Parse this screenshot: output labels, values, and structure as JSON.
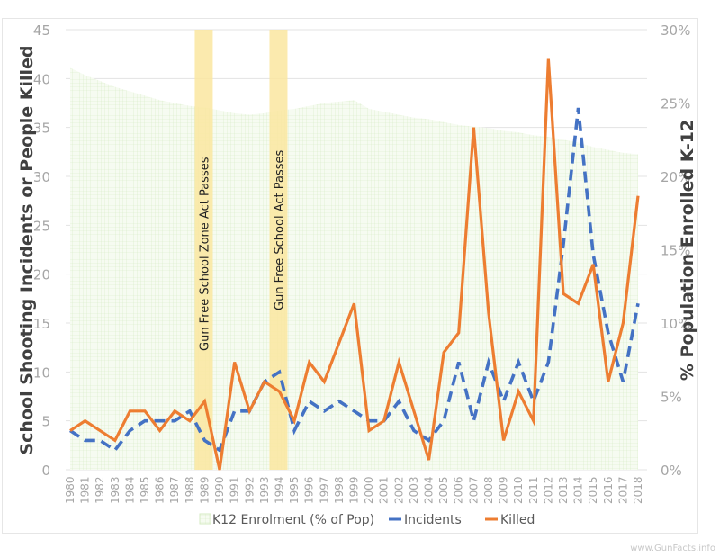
{
  "chart_data": {
    "type": "line",
    "title": "",
    "xlabel": "",
    "ylabel": "School Shooting Incidents or People Killed",
    "y2label": "% Population Enrolled K-12",
    "ylim": [
      0,
      45
    ],
    "y2lim": [
      0,
      30
    ],
    "yticks": [
      "0",
      "5",
      "10",
      "15",
      "20",
      "25",
      "30",
      "35",
      "40",
      "45"
    ],
    "y2ticks": [
      "0%",
      "5%",
      "10%",
      "15%",
      "20%",
      "25%",
      "30%"
    ],
    "grid": true,
    "legend_position": "bottom",
    "categories": [
      "1980",
      "1981",
      "1982",
      "1983",
      "1984",
      "1985",
      "1986",
      "1987",
      "1988",
      "1989",
      "1990",
      "1991",
      "1992",
      "1993",
      "1994",
      "1995",
      "1996",
      "1997",
      "1998",
      "1999",
      "2000",
      "2001",
      "2002",
      "2003",
      "2004",
      "2005",
      "2006",
      "2007",
      "2008",
      "2009",
      "2010",
      "2011",
      "2012",
      "2013",
      "2014",
      "2015",
      "2016",
      "2017",
      "2018"
    ],
    "series": [
      {
        "name": "K12 Enrolment (% of Pop)",
        "type": "area",
        "axis": "right",
        "color": "#dcefc9",
        "values": [
          27.4,
          26.9,
          26.5,
          26.1,
          25.8,
          25.5,
          25.2,
          25.0,
          24.8,
          24.7,
          24.5,
          24.3,
          24.2,
          24.3,
          24.5,
          24.6,
          24.8,
          25.0,
          25.1,
          25.2,
          24.6,
          24.4,
          24.2,
          24.0,
          23.9,
          23.7,
          23.5,
          23.4,
          23.3,
          23.1,
          23.0,
          22.8,
          22.7,
          22.5,
          22.3,
          22.0,
          21.8,
          21.6,
          21.5
        ]
      },
      {
        "name": "Incidents",
        "type": "line",
        "style": "dashed",
        "axis": "left",
        "color": "#4472c4",
        "values": [
          4,
          3,
          3,
          2,
          4,
          5,
          5,
          5,
          6,
          3,
          2,
          6,
          6,
          9,
          10,
          4,
          7,
          6,
          7,
          6,
          5,
          5,
          7,
          4,
          3,
          5,
          11,
          5,
          11,
          7,
          11,
          7,
          11,
          23,
          37,
          22,
          14,
          9,
          17
        ]
      },
      {
        "name": "Killed",
        "type": "line",
        "style": "solid",
        "axis": "left",
        "color": "#ed7d31",
        "values": [
          4,
          5,
          4,
          3,
          6,
          6,
          4,
          6,
          5,
          7,
          0,
          11,
          6,
          9,
          8,
          5,
          11,
          9,
          13,
          17,
          4,
          5,
          11,
          6,
          1,
          12,
          14,
          35,
          16,
          3,
          8,
          5,
          42,
          18,
          17,
          21,
          9,
          15,
          28
        ]
      }
    ],
    "annotations": [
      {
        "year": "1989",
        "label": "Gun Free School Zone Act Passes",
        "color": "#fae6a0"
      },
      {
        "year": "1994",
        "label": "Gun Free School  Act Passes",
        "color": "#fae6a0"
      }
    ]
  },
  "watermark": "www.GunFacts.info"
}
